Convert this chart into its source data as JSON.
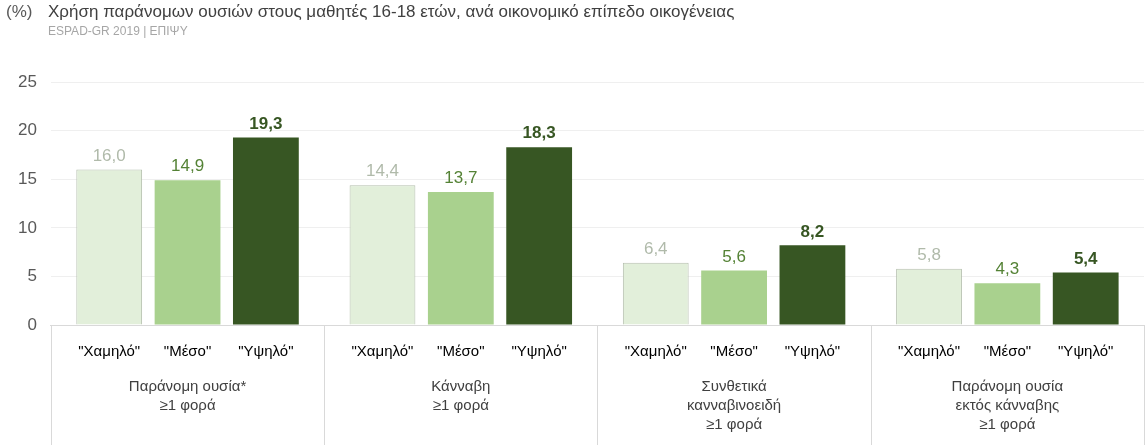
{
  "chart_data": {
    "type": "bar",
    "title": "Χρήση παράνομων ουσιών στους μαθητές 16-18 ετών, ανά οικονομικό επίπεδο οικογένειας",
    "subtitle": "ESPAD-GR 2019 | ΕΠΙΨΥ",
    "ylabel": "(%)",
    "categories": [
      "Παράνομη ουσία*\n≥1 φορά",
      "Κάνναβη\n≥1 φορά",
      "Συνθετικά\nκανναβινοειδή\n≥1 φορά",
      "Παράνομη ουσία\nεκτός κάνναβης\n≥1 φορά"
    ],
    "series": [
      {
        "name": "\"Χαμηλό\"",
        "color": "#e2efda",
        "values": [
          16.0,
          14.4,
          6.4,
          5.8
        ],
        "value_labels": [
          "16,0",
          "14,4",
          "6,4",
          "5,8"
        ]
      },
      {
        "name": "\"Μέσο\"",
        "color": "#a9d18e",
        "values": [
          14.9,
          13.7,
          5.6,
          4.3
        ],
        "value_labels": [
          "14,9",
          "13,7",
          "5,6",
          "4,3"
        ]
      },
      {
        "name": "\"Υψηλό\"",
        "color": "#375623",
        "values": [
          19.3,
          18.3,
          8.2,
          5.4
        ],
        "value_labels": [
          "19,3",
          "18,3",
          "8,2",
          "5,4"
        ]
      }
    ],
    "ylim": [
      0,
      25
    ],
    "yticks": [
      0,
      5,
      10,
      15,
      20,
      25
    ],
    "grid": "y",
    "legend": false
  }
}
